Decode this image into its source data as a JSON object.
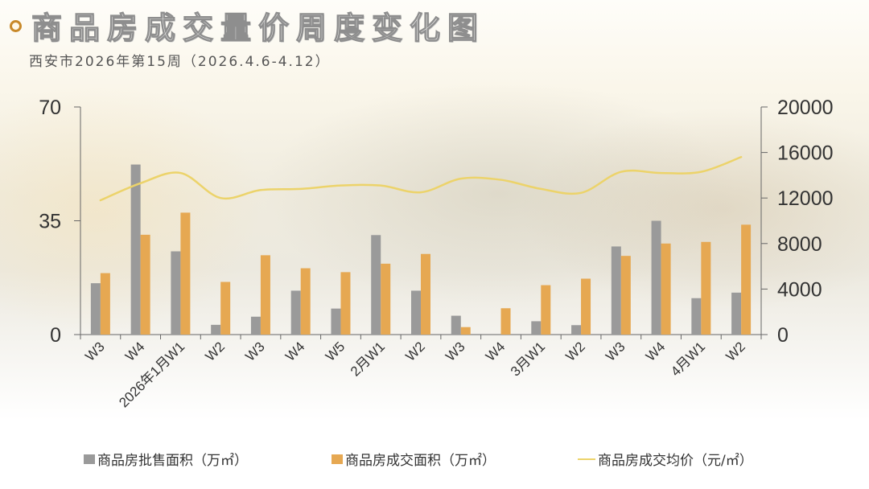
{
  "header": {
    "title": "商品房成交量价周度变化图",
    "subtitle": "西安市2026年第15周（2026.4.6-4.12）"
  },
  "colors": {
    "supply_bar": "#9a9a9a",
    "deal_bar": "#e6a852",
    "price_line": "#ecd36a",
    "axis": "#666666",
    "title_dot": "#c8892a"
  },
  "legend": [
    {
      "label": "商品房批售面积（万㎡）",
      "type": "box",
      "color": "#9a9a9a"
    },
    {
      "label": "商品房成交面积（万㎡）",
      "type": "box",
      "color": "#e6a852"
    },
    {
      "label": "商品房成交均价（元/㎡）",
      "type": "line",
      "color": "#ecd36a"
    }
  ],
  "chart_data": {
    "type": "bar",
    "title": "商品房成交量价周度变化图",
    "subtitle": "西安市2026年第15周（2026.4.6-4.12）",
    "categories": [
      "W3",
      "W4",
      "2026年1月W1",
      "W2",
      "W3",
      "W4",
      "W5",
      "2月W1",
      "W2",
      "W3",
      "W4",
      "3月W1",
      "W2",
      "W3",
      "W4",
      "4月W1",
      "W2"
    ],
    "series": [
      {
        "name": "商品房批售面积（万㎡）",
        "type": "bar",
        "axis": "left",
        "values": [
          15.8,
          52.3,
          25.6,
          3.0,
          5.5,
          13.5,
          8.0,
          30.6,
          13.5,
          5.8,
          0,
          4.1,
          2.9,
          27.1,
          35.0,
          11.2,
          12.9
        ]
      },
      {
        "name": "商品房成交面积（万㎡）",
        "type": "bar",
        "axis": "left",
        "values": [
          18.9,
          30.7,
          37.5,
          16.2,
          24.4,
          20.4,
          19.2,
          21.8,
          24.8,
          2.3,
          8.1,
          15.2,
          17.2,
          24.2,
          28.0,
          28.5,
          33.8
        ]
      },
      {
        "name": "商品房成交均价（元/㎡）",
        "type": "line",
        "axis": "right",
        "values": [
          11800,
          13300,
          14200,
          12000,
          12700,
          12800,
          13100,
          13100,
          12500,
          13700,
          13600,
          12800,
          12450,
          14300,
          14200,
          14300,
          15600
        ]
      }
    ],
    "y_left": {
      "ylim": [
        0,
        70
      ],
      "ticks": [
        0,
        35,
        70
      ]
    },
    "y_right": {
      "ylim": [
        0,
        20000
      ],
      "ticks": [
        0,
        4000,
        8000,
        12000,
        16000,
        20000
      ]
    },
    "xlabel": "",
    "ylabel": "",
    "grid": false,
    "legend_position": "bottom"
  }
}
